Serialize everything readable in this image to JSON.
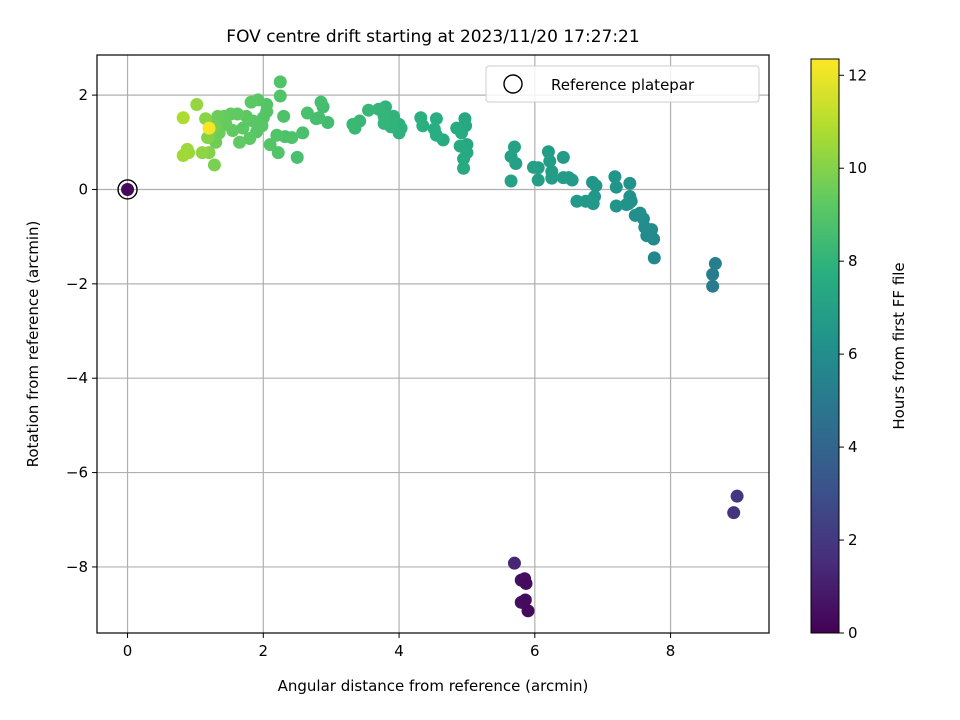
{
  "chart_data": {
    "type": "scatter",
    "title": "FOV centre drift starting at 2023/11/20 17:27:21",
    "xlabel": "Angular distance from reference (arcmin)",
    "ylabel": "Rotation from reference (arcmin)",
    "xlim": [
      -0.45,
      9.45
    ],
    "ylim": [
      -9.4,
      2.85
    ],
    "xticks": [
      0,
      2,
      4,
      6,
      8
    ],
    "yticks": [
      -8,
      -6,
      -4,
      -2,
      0,
      2
    ],
    "xtick_labels": [
      "0",
      "2",
      "4",
      "6",
      "8"
    ],
    "ytick_labels": [
      "−8",
      "−6",
      "−4",
      "−2",
      "0",
      "2"
    ],
    "grid": true,
    "legend": {
      "position": "top-right",
      "entries": [
        "Reference platepar"
      ]
    },
    "colorbar": {
      "label": "Hours from first FF file",
      "range": [
        0,
        12.35
      ],
      "ticks": [
        0,
        2,
        4,
        6,
        8,
        10,
        12
      ],
      "tick_labels": [
        "0",
        "2",
        "4",
        "6",
        "8",
        "10",
        "12"
      ],
      "colormap": "viridis"
    },
    "reference_point": {
      "x": 0,
      "y": 0,
      "hours": 0.3
    },
    "points": [
      {
        "x": 5.7,
        "y": -7.92,
        "h": 1.3
      },
      {
        "x": 5.8,
        "y": -8.28,
        "h": 0.6
      },
      {
        "x": 5.85,
        "y": -8.25,
        "h": 0.5
      },
      {
        "x": 5.87,
        "y": -8.35,
        "h": 0.4
      },
      {
        "x": 5.8,
        "y": -8.75,
        "h": 0.5
      },
      {
        "x": 5.86,
        "y": -8.7,
        "h": 0.4
      },
      {
        "x": 5.9,
        "y": -8.93,
        "h": 0.3
      },
      {
        "x": 8.93,
        "y": -6.85,
        "h": 1.8
      },
      {
        "x": 8.98,
        "y": -6.5,
        "h": 2.0
      },
      {
        "x": 8.62,
        "y": -2.05,
        "h": 5.1
      },
      {
        "x": 8.62,
        "y": -1.8,
        "h": 5.2
      },
      {
        "x": 8.66,
        "y": -1.57,
        "h": 5.3
      },
      {
        "x": 7.76,
        "y": -1.45,
        "h": 5.7
      },
      {
        "x": 7.75,
        "y": -1.05,
        "h": 5.8
      },
      {
        "x": 7.72,
        "y": -0.85,
        "h": 5.9
      },
      {
        "x": 7.65,
        "y": -0.98,
        "h": 5.9
      },
      {
        "x": 7.62,
        "y": -0.8,
        "h": 6.0
      },
      {
        "x": 7.6,
        "y": -0.62,
        "h": 6.0
      },
      {
        "x": 7.55,
        "y": -0.5,
        "h": 6.1
      },
      {
        "x": 7.48,
        "y": -0.55,
        "h": 6.1
      },
      {
        "x": 7.42,
        "y": -0.25,
        "h": 6.2
      },
      {
        "x": 7.4,
        "y": -0.15,
        "h": 6.2
      },
      {
        "x": 7.38,
        "y": -0.3,
        "h": 6.2
      },
      {
        "x": 7.4,
        "y": 0.13,
        "h": 6.3
      },
      {
        "x": 7.35,
        "y": -0.32,
        "h": 6.3
      },
      {
        "x": 7.2,
        "y": 0.05,
        "h": 6.4
      },
      {
        "x": 7.18,
        "y": 0.27,
        "h": 6.4
      },
      {
        "x": 7.2,
        "y": -0.35,
        "h": 6.4
      },
      {
        "x": 6.9,
        "y": 0.08,
        "h": 6.5
      },
      {
        "x": 6.88,
        "y": -0.15,
        "h": 6.5
      },
      {
        "x": 6.85,
        "y": 0.15,
        "h": 6.5
      },
      {
        "x": 6.86,
        "y": -0.3,
        "h": 6.6
      },
      {
        "x": 6.75,
        "y": -0.25,
        "h": 6.6
      },
      {
        "x": 6.62,
        "y": -0.25,
        "h": 6.6
      },
      {
        "x": 6.55,
        "y": 0.2,
        "h": 6.7
      },
      {
        "x": 6.5,
        "y": 0.25,
        "h": 6.7
      },
      {
        "x": 6.42,
        "y": 0.25,
        "h": 6.7
      },
      {
        "x": 6.42,
        "y": 0.68,
        "h": 6.7
      },
      {
        "x": 6.25,
        "y": 0.38,
        "h": 6.8
      },
      {
        "x": 6.25,
        "y": 0.24,
        "h": 6.8
      },
      {
        "x": 6.22,
        "y": 0.6,
        "h": 6.8
      },
      {
        "x": 6.2,
        "y": 0.8,
        "h": 6.8
      },
      {
        "x": 6.05,
        "y": 0.46,
        "h": 6.9
      },
      {
        "x": 6.05,
        "y": 0.2,
        "h": 6.9
      },
      {
        "x": 5.98,
        "y": 0.47,
        "h": 7.0
      },
      {
        "x": 5.72,
        "y": 0.55,
        "h": 7.0
      },
      {
        "x": 5.7,
        "y": 0.9,
        "h": 7.1
      },
      {
        "x": 5.65,
        "y": 0.7,
        "h": 7.1
      },
      {
        "x": 5.65,
        "y": 0.18,
        "h": 7.1
      },
      {
        "x": 4.97,
        "y": 1.5,
        "h": 7.4
      },
      {
        "x": 4.98,
        "y": 1.35,
        "h": 7.4
      },
      {
        "x": 5.0,
        "y": 0.95,
        "h": 7.4
      },
      {
        "x": 5.0,
        "y": 0.78,
        "h": 7.5
      },
      {
        "x": 4.95,
        "y": 0.65,
        "h": 7.5
      },
      {
        "x": 4.95,
        "y": 0.45,
        "h": 7.5
      },
      {
        "x": 4.9,
        "y": 0.92,
        "h": 7.5
      },
      {
        "x": 4.92,
        "y": 1.2,
        "h": 7.6
      },
      {
        "x": 4.85,
        "y": 1.3,
        "h": 7.6
      },
      {
        "x": 4.65,
        "y": 1.05,
        "h": 7.6
      },
      {
        "x": 4.55,
        "y": 1.15,
        "h": 7.7
      },
      {
        "x": 4.52,
        "y": 1.28,
        "h": 7.7
      },
      {
        "x": 4.55,
        "y": 1.5,
        "h": 7.7
      },
      {
        "x": 4.35,
        "y": 1.35,
        "h": 7.8
      },
      {
        "x": 4.32,
        "y": 1.52,
        "h": 7.8
      },
      {
        "x": 4.0,
        "y": 1.2,
        "h": 7.9
      },
      {
        "x": 4.0,
        "y": 1.38,
        "h": 7.9
      },
      {
        "x": 4.03,
        "y": 1.3,
        "h": 7.9
      },
      {
        "x": 3.92,
        "y": 1.55,
        "h": 8.0
      },
      {
        "x": 3.88,
        "y": 1.33,
        "h": 8.0
      },
      {
        "x": 3.8,
        "y": 1.75,
        "h": 8.0
      },
      {
        "x": 3.78,
        "y": 1.55,
        "h": 8.1
      },
      {
        "x": 3.78,
        "y": 1.4,
        "h": 8.1
      },
      {
        "x": 3.7,
        "y": 1.7,
        "h": 8.1
      },
      {
        "x": 3.55,
        "y": 1.68,
        "h": 8.2
      },
      {
        "x": 3.42,
        "y": 1.45,
        "h": 8.2
      },
      {
        "x": 3.35,
        "y": 1.3,
        "h": 8.2
      },
      {
        "x": 3.32,
        "y": 1.38,
        "h": 8.3
      },
      {
        "x": 2.95,
        "y": 1.42,
        "h": 8.5
      },
      {
        "x": 2.88,
        "y": 1.75,
        "h": 8.5
      },
      {
        "x": 2.85,
        "y": 1.85,
        "h": 8.6
      },
      {
        "x": 2.82,
        "y": 1.52,
        "h": 8.6
      },
      {
        "x": 2.78,
        "y": 1.5,
        "h": 8.6
      },
      {
        "x": 2.65,
        "y": 1.62,
        "h": 8.7
      },
      {
        "x": 2.58,
        "y": 1.2,
        "h": 8.7
      },
      {
        "x": 2.5,
        "y": 0.68,
        "h": 8.7
      },
      {
        "x": 2.42,
        "y": 1.1,
        "h": 8.8
      },
      {
        "x": 2.32,
        "y": 1.12,
        "h": 8.8
      },
      {
        "x": 2.3,
        "y": 1.55,
        "h": 8.8
      },
      {
        "x": 2.25,
        "y": 2.28,
        "h": 8.9
      },
      {
        "x": 2.25,
        "y": 1.98,
        "h": 8.9
      },
      {
        "x": 2.22,
        "y": 0.78,
        "h": 8.9
      },
      {
        "x": 2.2,
        "y": 1.15,
        "h": 8.9
      },
      {
        "x": 2.1,
        "y": 0.95,
        "h": 9.0
      },
      {
        "x": 2.05,
        "y": 1.8,
        "h": 9.0
      },
      {
        "x": 2.05,
        "y": 1.65,
        "h": 9.0
      },
      {
        "x": 2.0,
        "y": 1.52,
        "h": 9.0
      },
      {
        "x": 1.98,
        "y": 1.35,
        "h": 9.1
      },
      {
        "x": 1.92,
        "y": 1.9,
        "h": 9.1
      },
      {
        "x": 1.9,
        "y": 1.22,
        "h": 9.1
      },
      {
        "x": 1.85,
        "y": 1.45,
        "h": 9.1
      },
      {
        "x": 1.82,
        "y": 1.85,
        "h": 9.2
      },
      {
        "x": 1.8,
        "y": 1.08,
        "h": 9.2
      },
      {
        "x": 1.75,
        "y": 1.55,
        "h": 9.2
      },
      {
        "x": 1.7,
        "y": 1.3,
        "h": 9.2
      },
      {
        "x": 1.65,
        "y": 1.0,
        "h": 9.3
      },
      {
        "x": 1.62,
        "y": 1.6,
        "h": 9.3
      },
      {
        "x": 1.55,
        "y": 1.25,
        "h": 9.3
      },
      {
        "x": 1.52,
        "y": 1.6,
        "h": 9.3
      },
      {
        "x": 1.45,
        "y": 1.38,
        "h": 9.4
      },
      {
        "x": 1.42,
        "y": 1.55,
        "h": 9.4
      },
      {
        "x": 1.35,
        "y": 1.2,
        "h": 9.5
      },
      {
        "x": 1.33,
        "y": 1.55,
        "h": 9.5
      },
      {
        "x": 1.3,
        "y": 1.0,
        "h": 9.6
      },
      {
        "x": 1.28,
        "y": 1.35,
        "h": 9.7
      },
      {
        "x": 1.28,
        "y": 0.52,
        "h": 9.8
      },
      {
        "x": 1.22,
        "y": 1.25,
        "h": 9.9
      },
      {
        "x": 1.2,
        "y": 0.78,
        "h": 10.0
      },
      {
        "x": 1.18,
        "y": 1.1,
        "h": 10.0
      },
      {
        "x": 1.15,
        "y": 1.5,
        "h": 10.1
      },
      {
        "x": 1.1,
        "y": 0.78,
        "h": 10.2
      },
      {
        "x": 1.02,
        "y": 1.8,
        "h": 10.3
      },
      {
        "x": 0.9,
        "y": 0.78,
        "h": 10.4
      },
      {
        "x": 0.88,
        "y": 0.85,
        "h": 10.5
      },
      {
        "x": 0.82,
        "y": 0.72,
        "h": 10.6
      },
      {
        "x": 0.82,
        "y": 1.52,
        "h": 10.8
      },
      {
        "x": 1.2,
        "y": 1.3,
        "h": 12.2
      }
    ]
  }
}
